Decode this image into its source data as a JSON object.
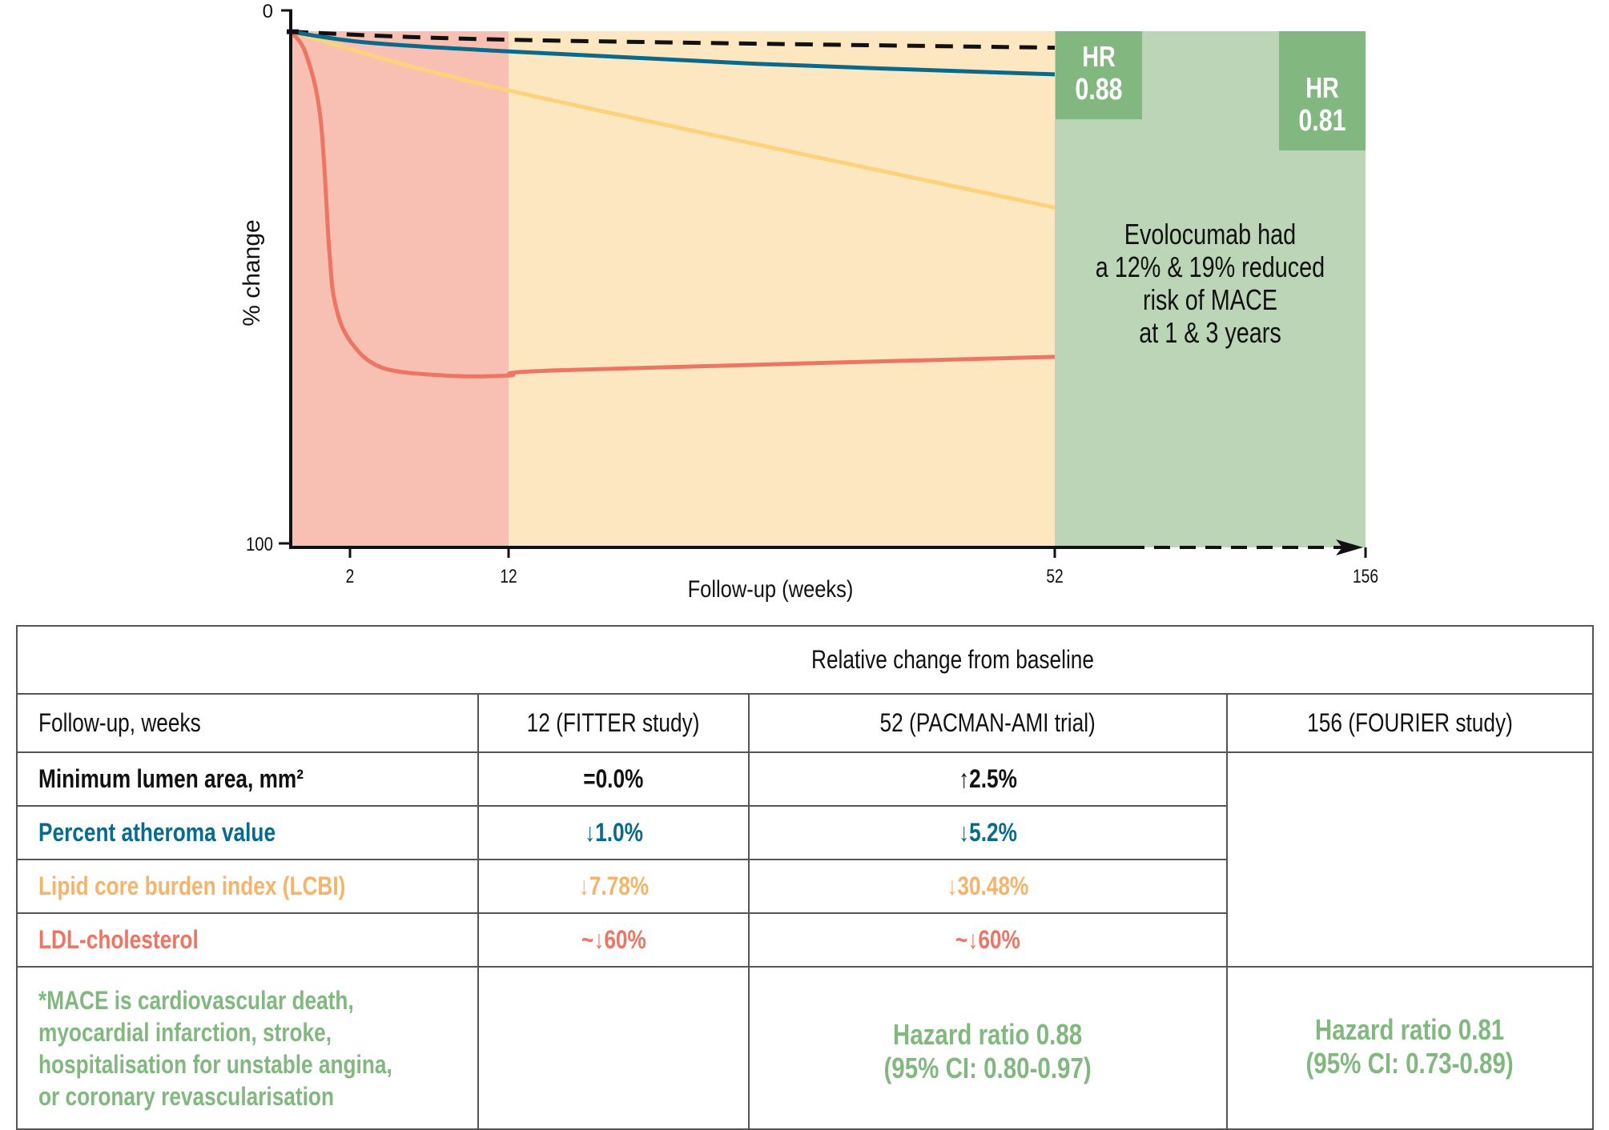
{
  "chart_data": {
    "type": "line",
    "title": "",
    "xlabel": "Follow-up (weeks)",
    "ylabel": "% change",
    "ylim": [
      0,
      100
    ],
    "y_ticks": [
      "0",
      "100"
    ],
    "x_ticks": [
      "2",
      "12",
      "52",
      "156"
    ],
    "x_tick_values": [
      2,
      12,
      52,
      156
    ],
    "y_inverted": true,
    "regions": [
      {
        "name": "FITTER period",
        "from": 0,
        "to": 12,
        "color": "#f7c0b2"
      },
      {
        "name": "PACMAN-AMI period",
        "from": 12,
        "to": 52,
        "color": "#fde7c0"
      },
      {
        "name": "FOURIER period",
        "from": 52,
        "to": 156,
        "color": "#bcd5b6"
      }
    ],
    "series": [
      {
        "name": "Minimum lumen area",
        "color": "#111111",
        "style": "dashed",
        "x": [
          0,
          12,
          52
        ],
        "y": [
          4,
          5.5,
          7
        ]
      },
      {
        "name": "Percent atheroma value",
        "color": "#0a6a8c",
        "style": "solid",
        "x": [
          0,
          3,
          12,
          30,
          52
        ],
        "y": [
          4,
          6,
          7.7,
          10,
          12
        ]
      },
      {
        "name": "Lipid core burden index",
        "color": "#fcd27a",
        "style": "solid",
        "x": [
          0,
          12,
          52
        ],
        "y": [
          4,
          15,
          37
        ]
      },
      {
        "name": "LDL-cholesterol",
        "color": "#ec7563",
        "style": "solid",
        "x": [
          0,
          0.5,
          1.0,
          1.3,
          1.5,
          2,
          4,
          8,
          12,
          16,
          52
        ],
        "y": [
          4,
          8,
          20,
          45,
          55,
          62,
          67,
          68.5,
          68.5,
          67.5,
          65
        ]
      }
    ],
    "hr_boxes": [
      {
        "label": "HR",
        "value": "0.88",
        "at_week": 52
      },
      {
        "label": "HR",
        "value": "0.81",
        "at_week": 156
      }
    ],
    "annotation": [
      "Evolocumab had",
      "a 12% & 19% reduced",
      "risk of MACE",
      "at 1 & 3 years"
    ],
    "extended_axis_dashed_from": 52,
    "colors": {
      "axis": "#111111",
      "hr_box": "#82b880"
    }
  },
  "table": {
    "span_header": "Relative change from baseline",
    "columns": [
      "Follow-up, weeks",
      "12 (FITTER study)",
      "52 (PACMAN-AMI trial)",
      "156 (FOURIER study)"
    ],
    "rows": [
      {
        "label": "Minimum lumen area, mm²",
        "color": "#111111",
        "v12": "=0.0%",
        "v52": "↑2.5%"
      },
      {
        "label": "Percent atheroma value",
        "color": "#0a6a8c",
        "v12": "↓1.0%",
        "v52": "↓5.2%"
      },
      {
        "label": "Lipid core burden index (LCBI)",
        "color": "#f6b36a",
        "v12": "↓7.78%",
        "v52": "↓30.48%"
      },
      {
        "label": "LDL-cholesterol",
        "color": "#ec7563",
        "v12": "~↓60%",
        "v52": "~↓60%"
      }
    ],
    "footnote": [
      "*MACE is cardiovascular death,",
      "myocardial infarction, stroke,",
      "hospitalisation for unstable angina,",
      "or coronary revascularisation"
    ],
    "hr52": [
      "Hazard ratio 0.88",
      "(95% CI: 0.80-0.97)"
    ],
    "hr156": [
      "Hazard ratio 0.81",
      "(95% CI: 0.73-0.89)"
    ]
  }
}
